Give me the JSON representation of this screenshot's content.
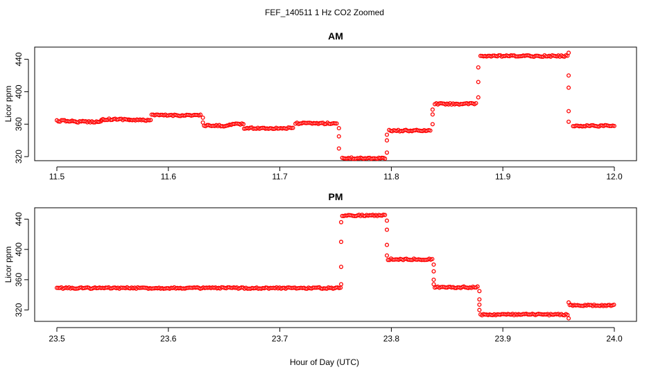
{
  "title": "FEF_140511  1 Hz CO2 Zoomed",
  "xlabel": "Hour of Day (UTC)",
  "point_color": "#ff0000",
  "chart_data": [
    {
      "type": "scatter",
      "title": "AM",
      "ylabel": "Licor ppm",
      "xlim": [
        11.5,
        12.0
      ],
      "ylim": [
        315,
        455
      ],
      "xticks": [
        "11.5",
        "11.6",
        "11.7",
        "11.8",
        "11.9",
        "12.0"
      ],
      "xtick_values": [
        11.5,
        11.6,
        11.7,
        11.8,
        11.9,
        12.0
      ],
      "yticks": [
        "320",
        "360",
        "400",
        "440"
      ],
      "ytick_values": [
        320,
        360,
        400,
        440
      ],
      "series": [
        {
          "segments": [
            {
              "x0": 11.5,
              "x1": 11.515,
              "y": 364
            },
            {
              "x0": 11.515,
              "x1": 11.54,
              "y": 363
            },
            {
              "x0": 11.54,
              "x1": 11.565,
              "y": 366
            },
            {
              "x0": 11.565,
              "x1": 11.585,
              "y": 365
            },
            {
              "x0": 11.585,
              "x1": 11.63,
              "y": 371
            },
            {
              "x0": 11.632,
              "x1": 11.655,
              "y": 358
            },
            {
              "x0": 11.655,
              "x1": 11.668,
              "y": 360
            },
            {
              "x0": 11.668,
              "x1": 11.712,
              "y": 355
            },
            {
              "x0": 11.714,
              "x1": 11.752,
              "y": 361
            },
            {
              "x0": 11.756,
              "x1": 11.795,
              "y": 318
            },
            {
              "x0": 11.798,
              "x1": 11.836,
              "y": 352
            },
            {
              "x0": 11.839,
              "x1": 11.877,
              "y": 385
            },
            {
              "x0": 11.88,
              "x1": 11.958,
              "y": 444
            },
            {
              "x0": 11.963,
              "x1": 12.0,
              "y": 358
            }
          ],
          "transitions": [
            {
              "x": 11.631,
              "y": [
                368,
                362
              ]
            },
            {
              "x": 11.753,
              "y": [
                355,
                345,
                330
              ]
            },
            {
              "x": 11.796,
              "y": [
                325,
                340,
                347
              ]
            },
            {
              "x": 11.837,
              "y": [
                360,
                372,
                378
              ]
            },
            {
              "x": 11.878,
              "y": [
                393,
                412,
                430
              ]
            },
            {
              "x": 11.959,
              "y": [
                448,
                420,
                405,
                376,
                363
              ]
            }
          ]
        }
      ]
    },
    {
      "type": "scatter",
      "title": "PM",
      "ylabel": "Licor ppm",
      "xlim": [
        23.5,
        24.0
      ],
      "ylim": [
        305,
        455
      ],
      "xticks": [
        "23.5",
        "23.6",
        "23.7",
        "23.8",
        "23.9",
        "24.0"
      ],
      "xtick_values": [
        23.5,
        23.6,
        23.7,
        23.8,
        23.9,
        24.0
      ],
      "yticks": [
        "320",
        "360",
        "400",
        "440"
      ],
      "ytick_values": [
        320,
        360,
        400,
        440
      ],
      "series": [
        {
          "segments": [
            {
              "x0": 23.5,
              "x1": 23.755,
              "y": 349
            },
            {
              "x0": 23.756,
              "x1": 23.795,
              "y": 445
            },
            {
              "x0": 23.797,
              "x1": 23.837,
              "y": 387
            },
            {
              "x0": 23.839,
              "x1": 23.878,
              "y": 350
            },
            {
              "x0": 23.88,
              "x1": 23.958,
              "y": 314
            },
            {
              "x0": 23.96,
              "x1": 24.0,
              "y": 326
            }
          ],
          "transitions": [
            {
              "x": 23.755,
              "y": [
                354,
                377,
                410,
                436
              ]
            },
            {
              "x": 23.796,
              "y": [
                438,
                426,
                406,
                392
              ]
            },
            {
              "x": 23.838,
              "y": [
                380,
                371,
                360,
                354
              ]
            },
            {
              "x": 23.879,
              "y": [
                345,
                334,
                327,
                320
              ]
            },
            {
              "x": 23.959,
              "y": [
                309,
                330
              ]
            }
          ]
        }
      ]
    }
  ]
}
